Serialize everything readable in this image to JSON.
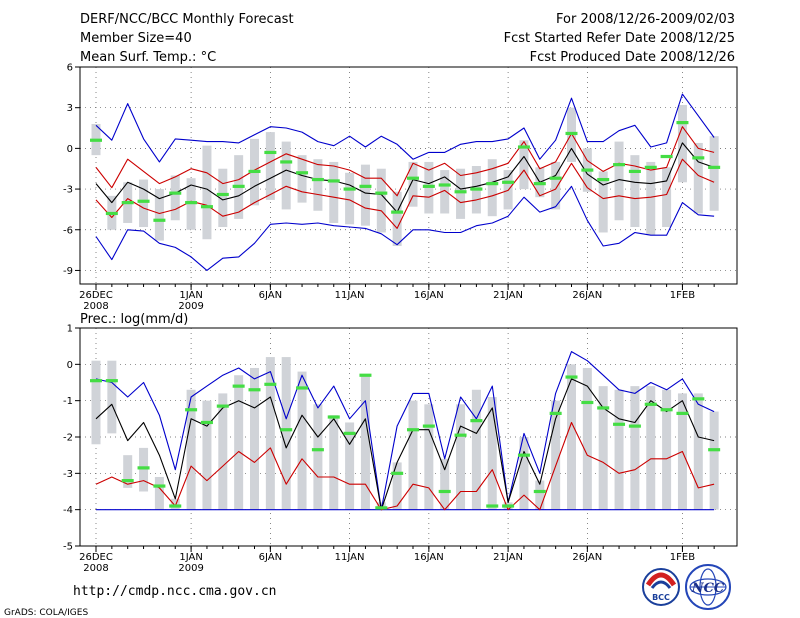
{
  "header": {
    "left": [
      "DERF/NCC/BCC Monthly Forecast",
      "Member Size=40",
      "Mean Surf. Temp.: °C"
    ],
    "right": [
      "For 2008/12/26-2009/02/03",
      "Fcst Started Refer Date 2008/12/25",
      "Fcst Produced Date 2008/12/26"
    ]
  },
  "footer": {
    "url": "http://cmdp.ncc.cma.gov.cn",
    "grads": "GrADS: COLA/IGES",
    "logo_left_text": "BCC",
    "logo_right_text": "NCC"
  },
  "colors": {
    "max_line": "#0000cc",
    "min_line": "#0000cc",
    "spread_line": "#cc0000",
    "mean_line": "#000000",
    "box": "#d0d3d8",
    "marker": "#44dd44"
  },
  "chart_data": [
    {
      "type": "line",
      "title": "Mean Surf. Temp.: °C",
      "ylim": [
        -10,
        6
      ],
      "yticks": [
        6,
        3,
        0,
        -3,
        -6,
        -9
      ],
      "ytick_labels": [
        "6",
        "3",
        "0",
        "-3",
        "-6",
        "-9"
      ],
      "xticks": [
        {
          "day": 0,
          "label": "26DEC",
          "label2": "2008"
        },
        {
          "day": 6,
          "label": "1JAN",
          "label2": "2009"
        },
        {
          "day": 11,
          "label": "6JAN"
        },
        {
          "day": 16,
          "label": "11JAN"
        },
        {
          "day": 21,
          "label": "16JAN"
        },
        {
          "day": 26,
          "label": "21JAN"
        },
        {
          "day": 31,
          "label": "26JAN"
        },
        {
          "day": 37,
          "label": "1FEB"
        }
      ],
      "days": 40,
      "series": [
        {
          "name": "ensemble max",
          "values": [
            -6.5,
            -8.2,
            -6.0,
            -6.1,
            -7.0,
            -7.3,
            -8.0,
            -9.0,
            -8.1,
            -8.0,
            -7.0,
            -5.6,
            -5.5,
            -5.6,
            -5.5,
            -5.7,
            -5.8,
            -5.9,
            -6.3,
            -7.1,
            -6.0,
            -6.0,
            -6.2,
            -6.2,
            -5.7,
            -5.5,
            -5.0,
            -3.6,
            -4.7,
            -4.3,
            -2.8,
            -5.3,
            -7.2,
            -7.0,
            -6.2,
            -6.4,
            -6.4,
            -4.0,
            -4.9,
            -5.0
          ]
        },
        {
          "name": "ensemble min",
          "values": [
            1.7,
            0.6,
            3.3,
            0.7,
            -1.0,
            0.7,
            0.6,
            0.5,
            0.5,
            0.4,
            1.0,
            1.6,
            1.5,
            1.2,
            0.5,
            0.2,
            0.9,
            0.1,
            0.9,
            0.3,
            -0.8,
            -0.3,
            -0.3,
            0.3,
            0.5,
            0.5,
            0.7,
            1.5,
            -0.8,
            0.6,
            3.7,
            0.5,
            0.5,
            1.3,
            1.7,
            0.1,
            0.4,
            4.0,
            2.4,
            0.8
          ]
        },
        {
          "name": "mean",
          "values": [
            -2.6,
            -4.0,
            -2.5,
            -3.0,
            -3.7,
            -3.3,
            -2.7,
            -3.0,
            -3.8,
            -3.5,
            -2.8,
            -2.2,
            -1.6,
            -2.0,
            -2.3,
            -2.4,
            -2.7,
            -3.3,
            -3.4,
            -4.7,
            -2.3,
            -2.6,
            -2.1,
            -3.0,
            -2.8,
            -2.5,
            -2.1,
            -0.6,
            -2.5,
            -2.0,
            0.0,
            -1.9,
            -2.7,
            -2.3,
            -2.5,
            -2.6,
            -2.4,
            0.4,
            -1.0,
            -1.4
          ]
        },
        {
          "name": "spread upper",
          "values": [
            -1.4,
            -2.9,
            -0.8,
            -1.7,
            -2.6,
            -2.1,
            -1.5,
            -1.8,
            -2.6,
            -2.3,
            -1.6,
            -1.0,
            -0.4,
            -0.8,
            -1.2,
            -1.3,
            -1.6,
            -2.2,
            -2.2,
            -3.5,
            -1.1,
            -1.6,
            -1.1,
            -2.0,
            -1.8,
            -1.5,
            -1.1,
            0.5,
            -1.5,
            -1.0,
            1.1,
            -0.9,
            -1.7,
            -1.1,
            -1.3,
            -1.6,
            -1.4,
            1.6,
            0.0,
            -0.3
          ]
        },
        {
          "name": "spread lower",
          "values": [
            -3.8,
            -5.1,
            -3.7,
            -4.4,
            -4.8,
            -4.5,
            -3.9,
            -4.2,
            -5.0,
            -4.7,
            -4.0,
            -3.4,
            -2.8,
            -3.2,
            -3.4,
            -3.6,
            -3.8,
            -4.4,
            -4.6,
            -5.9,
            -3.5,
            -3.6,
            -3.1,
            -4.0,
            -3.8,
            -3.5,
            -3.1,
            -1.6,
            -3.5,
            -3.0,
            -1.1,
            -2.9,
            -3.7,
            -3.5,
            -3.7,
            -3.6,
            -3.4,
            -0.8,
            -2.0,
            -2.5
          ]
        }
      ],
      "boxes": [
        {
          "lo": -0.5,
          "hi": 1.8,
          "mark": 0.6
        },
        {
          "lo": -6.0,
          "hi": -3.5,
          "mark": -4.8
        },
        {
          "lo": -5.5,
          "hi": -2.5,
          "mark": -4.0
        },
        {
          "lo": -5.8,
          "hi": -2.3,
          "mark": -3.9
        },
        {
          "lo": -6.8,
          "hi": -3.0,
          "mark": -5.3
        },
        {
          "lo": -5.3,
          "hi": -2.0,
          "mark": -3.3
        },
        {
          "lo": -6.0,
          "hi": -2.2,
          "mark": -4.0
        },
        {
          "lo": -6.7,
          "hi": 0.2,
          "mark": -4.3
        },
        {
          "lo": -5.8,
          "hi": -1.5,
          "mark": -3.4
        },
        {
          "lo": -5.2,
          "hi": -0.5,
          "mark": -2.8
        },
        {
          "lo": -4.2,
          "hi": 0.7,
          "mark": -1.7
        },
        {
          "lo": -3.8,
          "hi": 1.2,
          "mark": -0.3
        },
        {
          "lo": -4.5,
          "hi": 0.5,
          "mark": -1.0
        },
        {
          "lo": -4.0,
          "hi": -0.5,
          "mark": -1.8
        },
        {
          "lo": -4.6,
          "hi": -0.8,
          "mark": -2.3
        },
        {
          "lo": -5.5,
          "hi": -1.0,
          "mark": -2.4
        },
        {
          "lo": -5.6,
          "hi": -1.8,
          "mark": -3.0
        },
        {
          "lo": -5.7,
          "hi": -1.2,
          "mark": -2.8
        },
        {
          "lo": -6.2,
          "hi": -1.5,
          "mark": -3.3
        },
        {
          "lo": -7.2,
          "hi": -3.2,
          "mark": -4.7
        },
        {
          "lo": -4.3,
          "hi": -1.0,
          "mark": -2.2
        },
        {
          "lo": -4.8,
          "hi": -1.0,
          "mark": -2.8
        },
        {
          "lo": -4.8,
          "hi": -1.6,
          "mark": -2.7
        },
        {
          "lo": -5.2,
          "hi": -1.5,
          "mark": -3.2
        },
        {
          "lo": -4.8,
          "hi": -1.3,
          "mark": -3.0
        },
        {
          "lo": -5.0,
          "hi": -0.8,
          "mark": -2.6
        },
        {
          "lo": -4.5,
          "hi": -1.6,
          "mark": -2.5
        },
        {
          "lo": -3.0,
          "hi": 0.6,
          "mark": 0.1
        },
        {
          "lo": -3.6,
          "hi": -1.4,
          "mark": -2.6
        },
        {
          "lo": -4.5,
          "hi": -1.0,
          "mark": -2.2
        },
        {
          "lo": -1.0,
          "hi": 3.0,
          "mark": 1.1
        },
        {
          "lo": -3.2,
          "hi": 0.0,
          "mark": -1.6
        },
        {
          "lo": -6.2,
          "hi": -1.7,
          "mark": -2.3
        },
        {
          "lo": -5.3,
          "hi": 0.5,
          "mark": -1.2
        },
        {
          "lo": -5.8,
          "hi": -0.5,
          "mark": -1.7
        },
        {
          "lo": -6.4,
          "hi": -1.0,
          "mark": -1.4
        },
        {
          "lo": -5.8,
          "hi": -1.4,
          "mark": -0.6
        },
        {
          "lo": -2.5,
          "hi": 3.2,
          "mark": 1.9
        },
        {
          "lo": -4.8,
          "hi": 0.4,
          "mark": -0.7
        },
        {
          "lo": -4.6,
          "hi": 0.9,
          "mark": -1.4
        }
      ]
    },
    {
      "type": "line",
      "title": "Prec.: log(mm/d)",
      "ylim": [
        -5,
        1
      ],
      "yticks": [
        1,
        0,
        -1,
        -2,
        -3,
        -4,
        -5
      ],
      "ytick_labels": [
        "1",
        "0",
        "-1",
        "-2",
        "-3",
        "-4",
        "-5"
      ],
      "xticks": [
        {
          "day": 0,
          "label": "26DEC",
          "label2": "2008"
        },
        {
          "day": 6,
          "label": "1JAN",
          "label2": "2009"
        },
        {
          "day": 11,
          "label": "6JAN"
        },
        {
          "day": 16,
          "label": "11JAN"
        },
        {
          "day": 21,
          "label": "16JAN"
        },
        {
          "day": 26,
          "label": "21JAN"
        },
        {
          "day": 31,
          "label": "26JAN"
        },
        {
          "day": 37,
          "label": "1FEB"
        }
      ],
      "days": 40,
      "series": [
        {
          "name": "ensemble max",
          "values": [
            -0.4,
            -0.5,
            -0.9,
            -0.5,
            -1.4,
            -2.9,
            -0.9,
            -0.6,
            -0.3,
            -0.1,
            -0.4,
            -0.2,
            -1.5,
            -0.3,
            -1.2,
            -0.6,
            -1.5,
            -1.0,
            -4.0,
            -1.7,
            -0.8,
            -0.8,
            -2.6,
            -0.9,
            -1.5,
            -0.6,
            -3.8,
            -1.9,
            -3.0,
            -0.8,
            0.35,
            0.1,
            -0.3,
            -0.7,
            -0.8,
            -0.5,
            -0.7,
            -0.4,
            -1.1,
            -1.3
          ]
        },
        {
          "name": "ensemble min",
          "values": [
            -4,
            -4,
            -4,
            -4,
            -4,
            -4,
            -4,
            -4,
            -4,
            -4,
            -4,
            -4,
            -4,
            -4,
            -4,
            -4,
            -4,
            -4,
            -4,
            -4,
            -4,
            -4,
            -4,
            -4,
            -4,
            -4,
            -4,
            -4,
            -4,
            -4,
            -4,
            -4,
            -4,
            -4,
            -4,
            -4,
            -4,
            -4,
            -4,
            -4
          ]
        },
        {
          "name": "mean",
          "values": [
            -1.5,
            -1.1,
            -2.1,
            -1.6,
            -2.5,
            -3.7,
            -1.5,
            -1.7,
            -1.2,
            -1.0,
            -1.2,
            -0.9,
            -2.3,
            -1.4,
            -2.0,
            -1.5,
            -2.2,
            -1.5,
            -4.0,
            -2.7,
            -1.8,
            -1.8,
            -2.9,
            -1.7,
            -1.9,
            -1.2,
            -3.8,
            -2.4,
            -3.3,
            -1.5,
            -0.4,
            -0.6,
            -1.2,
            -1.5,
            -1.6,
            -1.0,
            -1.3,
            -1.0,
            -2.0,
            -2.1
          ]
        },
        {
          "name": "spread lower",
          "values": [
            -3.3,
            -3.1,
            -3.3,
            -3.2,
            -3.4,
            -3.9,
            -2.8,
            -3.2,
            -2.8,
            -2.4,
            -2.7,
            -2.3,
            -3.3,
            -2.6,
            -3.1,
            -3.1,
            -3.3,
            -3.3,
            -4.0,
            -3.9,
            -3.3,
            -3.4,
            -4.0,
            -3.5,
            -3.5,
            -2.9,
            -4.0,
            -3.6,
            -4.0,
            -2.8,
            -1.6,
            -2.5,
            -2.7,
            -3.0,
            -2.9,
            -2.6,
            -2.6,
            -2.4,
            -3.4,
            -3.3
          ]
        }
      ],
      "boxes": [
        {
          "lo": -2.2,
          "hi": 0.1,
          "mark": -0.45
        },
        {
          "lo": -1.9,
          "hi": 0.1,
          "mark": -0.45
        },
        {
          "lo": -3.4,
          "hi": -2.5,
          "mark": -3.2
        },
        {
          "lo": -3.5,
          "hi": -2.3,
          "mark": -2.85
        },
        {
          "lo": -4.0,
          "hi": -3.1,
          "mark": -3.35
        },
        {
          "lo": -4.0,
          "hi": -3.7,
          "mark": -3.9
        },
        {
          "lo": -4.0,
          "hi": -0.7,
          "mark": -1.25
        },
        {
          "lo": -4.0,
          "hi": -1.0,
          "mark": -1.6
        },
        {
          "lo": -4.0,
          "hi": -0.8,
          "mark": -1.15
        },
        {
          "lo": -4.0,
          "hi": -0.3,
          "mark": -0.6
        },
        {
          "lo": -4.0,
          "hi": -0.1,
          "mark": -0.7
        },
        {
          "lo": -4.0,
          "hi": 0.2,
          "mark": -0.55
        },
        {
          "lo": -4.0,
          "hi": 0.2,
          "mark": -1.8
        },
        {
          "lo": -4.0,
          "hi": -0.2,
          "mark": -0.65
        },
        {
          "lo": -4.0,
          "hi": -1.1,
          "mark": -2.35
        },
        {
          "lo": -4.0,
          "hi": -1.4,
          "mark": -1.45
        },
        {
          "lo": -4.0,
          "hi": -1.6,
          "mark": -1.9
        },
        {
          "lo": -4.0,
          "hi": -0.3,
          "mark": -0.3
        },
        {
          "lo": -4.0,
          "hi": -3.8,
          "mark": -3.95
        },
        {
          "lo": -4.0,
          "hi": -2.7,
          "mark": -3.0
        },
        {
          "lo": -4.0,
          "hi": -1.0,
          "mark": -1.8
        },
        {
          "lo": -4.0,
          "hi": -1.1,
          "mark": -1.7
        },
        {
          "lo": -4.0,
          "hi": -2.6,
          "mark": -3.5
        },
        {
          "lo": -4.0,
          "hi": -1.1,
          "mark": -1.95
        },
        {
          "lo": -4.0,
          "hi": -0.7,
          "mark": -1.55
        },
        {
          "lo": -4.0,
          "hi": -0.9,
          "mark": -3.9
        },
        {
          "lo": -4.0,
          "hi": -3.8,
          "mark": -3.9
        },
        {
          "lo": -4.0,
          "hi": -2.0,
          "mark": -2.5
        },
        {
          "lo": -4.0,
          "hi": -3.2,
          "mark": -3.5
        },
        {
          "lo": -4.0,
          "hi": -1.0,
          "mark": -1.35
        },
        {
          "lo": -4.0,
          "hi": 0.0,
          "mark": -0.35
        },
        {
          "lo": -4.0,
          "hi": -0.1,
          "mark": -1.05
        },
        {
          "lo": -4.0,
          "hi": -0.6,
          "mark": -1.2
        },
        {
          "lo": -4.0,
          "hi": -0.7,
          "mark": -1.65
        },
        {
          "lo": -4.0,
          "hi": -0.6,
          "mark": -1.7
        },
        {
          "lo": -4.0,
          "hi": -0.6,
          "mark": -1.1
        },
        {
          "lo": -4.0,
          "hi": -0.7,
          "mark": -1.25
        },
        {
          "lo": -4.0,
          "hi": -0.8,
          "mark": -1.35
        },
        {
          "lo": -4.0,
          "hi": -0.8,
          "mark": -0.95
        },
        {
          "lo": -4.0,
          "hi": -1.3,
          "mark": -2.35
        }
      ]
    }
  ]
}
